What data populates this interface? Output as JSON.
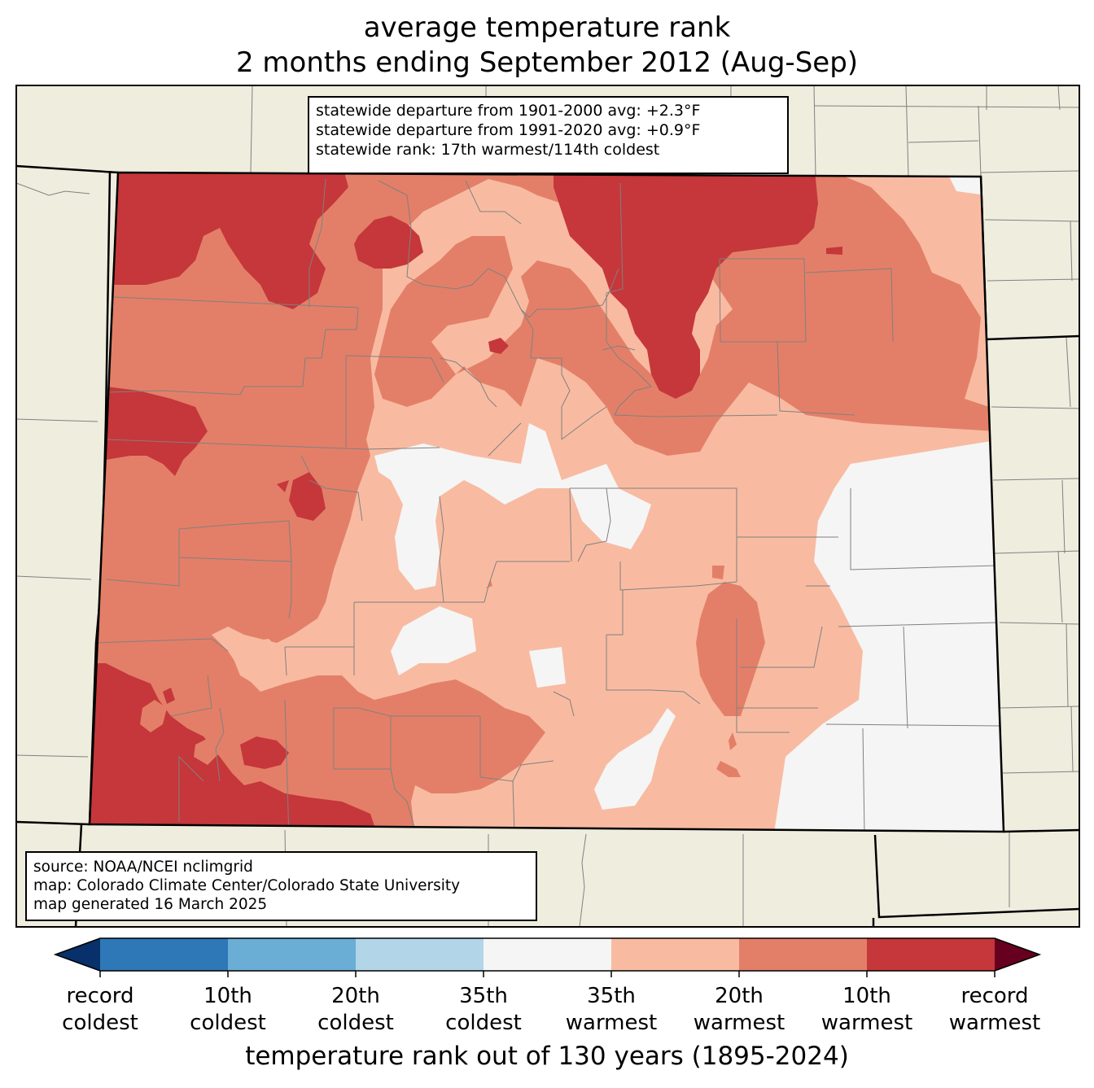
{
  "title": {
    "line1": "average temperature rank",
    "line2": "2 months ending September 2012 (Aug-Sep)"
  },
  "stats_box": {
    "line1": "statewide departure from 1901-2000 avg: +2.3°F",
    "line2": "statewide departure from 1991-2020 avg: +0.9°F",
    "line3": "statewide rank: 17th warmest/114th coldest"
  },
  "source_box": {
    "line1": "source: NOAA/NCEI nclimgrid",
    "line2": "map: Colorado Climate Center/Colorado State University",
    "line3": "map generated 16 March 2025"
  },
  "colorbar": {
    "title": "temperature rank out of 130 years (1895-2024)",
    "bins": [
      {
        "key": "record-coldest",
        "color": "#08306b"
      },
      {
        "key": "10th-coldest",
        "color": "#2e78b7"
      },
      {
        "key": "20th-coldest",
        "color": "#6aadd5"
      },
      {
        "key": "35th-coldest",
        "color": "#b3d5e8"
      },
      {
        "key": "near-normal",
        "color": "#f5f5f5"
      },
      {
        "key": "35th-warmest",
        "color": "#f8bba1"
      },
      {
        "key": "20th-warmest",
        "color": "#e37f68"
      },
      {
        "key": "10th-warmest",
        "color": "#c5373a"
      },
      {
        "key": "record-warmest",
        "color": "#67001f"
      }
    ],
    "labels": [
      {
        "line1": "record",
        "line2": "coldest"
      },
      {
        "line1": "10th",
        "line2": "coldest"
      },
      {
        "line1": "20th",
        "line2": "coldest"
      },
      {
        "line1": "35th",
        "line2": "coldest"
      },
      {
        "line1": "35th",
        "line2": "warmest"
      },
      {
        "line1": "20th",
        "line2": "warmest"
      },
      {
        "line1": "10th",
        "line2": "warmest"
      },
      {
        "line1": "record",
        "line2": "warmest"
      }
    ]
  },
  "colors": {
    "land_outside": "#efedde",
    "near_normal": "#f5f5f5",
    "warm_35": "#f8bba1",
    "warm_20": "#e37f68",
    "warm_10": "#c5373a",
    "county_lines": "#808080",
    "state_lines": "#000000"
  }
}
